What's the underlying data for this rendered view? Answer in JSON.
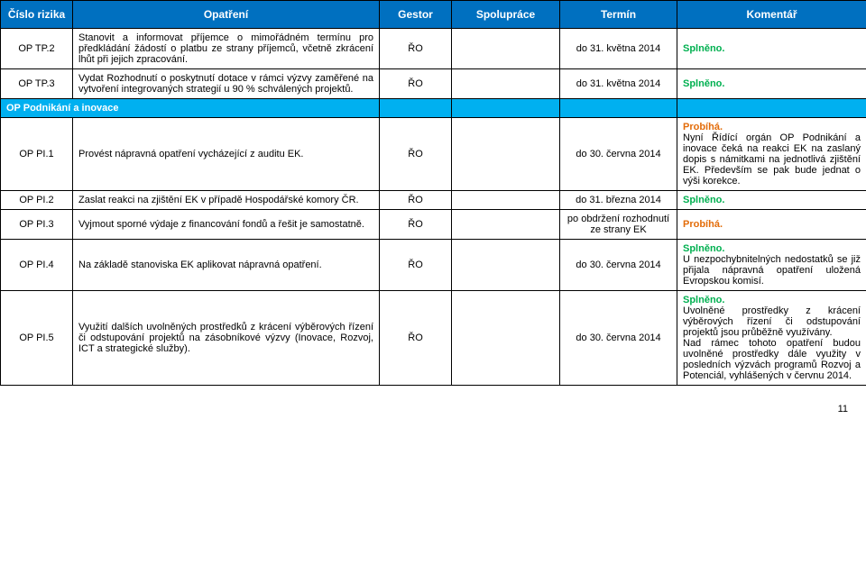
{
  "columns": {
    "risk": "Číslo rizika",
    "measure": "Opatření",
    "gestor": "Gestor",
    "coop": "Spolupráce",
    "term": "Termín",
    "comment": "Komentář"
  },
  "rows": [
    {
      "risk": "OP TP.2",
      "measure": "Stanovit a informovat příjemce o mimořádném termínu pro předkládání žádostí o platbu ze strany příjemců, včetně zkrácení lhůt při jejich zpracování.",
      "gestor": "ŘO",
      "coop": "",
      "term": "do 31. května 2014",
      "comment_green": "Splněno.",
      "comment_text": ""
    },
    {
      "risk": "OP TP.3",
      "measure": "Vydat Rozhodnutí o poskytnutí dotace v rámci výzvy zaměřené na vytvoření integrovaných strategií u 90 % schválených projektů.",
      "gestor": "ŘO",
      "coop": "",
      "term": "do 31. května 2014",
      "comment_green": "Splněno.",
      "comment_text": ""
    }
  ],
  "section_header": "OP Podnikání a inovace",
  "rows2": [
    {
      "risk": "OP PI.1",
      "measure": "Provést nápravná opatření vycházející z auditu EK.",
      "gestor": "ŘO",
      "coop": "",
      "term": "do 30. června 2014",
      "comment_orange": "Probíhá.",
      "comment_text": "Nyní Řídící orgán OP Podnikání a inovace čeká na reakci EK na zaslaný dopis s námitkami na jednotlivá zjištění EK. Především se pak bude jednat o výši korekce."
    },
    {
      "risk": "OP PI.2",
      "measure": "Zaslat reakci na zjištění EK v případě Hospodářské komory ČR.",
      "gestor": "ŘO",
      "coop": "",
      "term": "do 31. března 2014",
      "comment_green": "Splněno.",
      "comment_text": ""
    },
    {
      "risk": "OP PI.3",
      "measure": "Vyjmout sporné výdaje z financování fondů a řešit je samostatně.",
      "gestor": "ŘO",
      "coop": "",
      "term": "po obdržení rozhodnutí ze strany EK",
      "comment_orange": "Probíhá.",
      "comment_text": ""
    },
    {
      "risk": "OP PI.4",
      "measure": "Na základě stanoviska EK aplikovat nápravná opatření.",
      "gestor": "ŘO",
      "coop": "",
      "term": "do 30. června 2014",
      "comment_green": "Splněno.",
      "comment_text": "U nezpochybnitelných nedostatků se již přijala nápravná opatření uložená Evropskou komisí."
    },
    {
      "risk": "OP PI.5",
      "measure": "Využití dalších uvolněných prostředků z krácení výběrových řízení či odstupování projektů na zásobníkové výzvy (Inovace, Rozvoj, ICT a strategické služby).",
      "gestor": "ŘO",
      "coop": "",
      "term": "do 30. června 2014",
      "comment_green": "Splněno.",
      "comment_text": "Uvolněné prostředky z krácení výběrových řízení či odstupování projektů jsou průběžně využívány.\nNad rámec tohoto opatření budou uvolněné prostředky dále využity v posledních výzvách programů Rozvoj a Potenciál, vyhlášených v červnu 2014."
    }
  ],
  "page_number": "11"
}
